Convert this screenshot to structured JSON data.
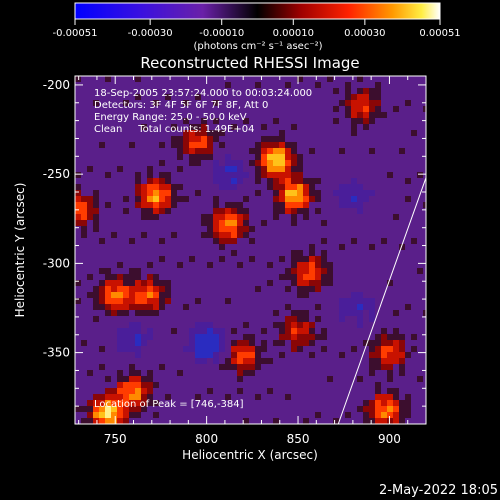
{
  "colorbar": {
    "tick_labels": [
      "-0.00051",
      "-0.00030",
      "-0.00010",
      "0.00010",
      "0.00030",
      "0.00051"
    ],
    "tick_values": [
      -0.00051,
      -0.0003,
      -0.0001,
      0.0001,
      0.0003,
      0.00051
    ],
    "range": [
      -0.00051,
      0.00051
    ],
    "unit_label": "(photons cm⁻² s⁻¹ asec⁻²)"
  },
  "chart_data": {
    "type": "heatmap",
    "title": "Reconstructed RHESSI Image",
    "xlabel": "Heliocentric X (arcsec)",
    "ylabel": "Heliocentric Y (arcsec)",
    "xlim": [
      728,
      920
    ],
    "ylim": [
      -390,
      -195
    ],
    "x_ticks": [
      750,
      800,
      850,
      900
    ],
    "y_ticks": [
      -200,
      -250,
      -300,
      -350
    ],
    "x_tick_labels": [
      "750",
      "800",
      "850",
      "900"
    ],
    "y_tick_labels": [
      "-200",
      "-250",
      "-300",
      "-350"
    ],
    "annotations": [
      "18-Sep-2005 23:57:24.000 to 00:03:24.000",
      "Detectors: 3F 4F 5F 6F 7F 8F, Att 0",
      "Energy Range: 25.0 - 50.0 keV",
      "Clean     Total counts: 1.49E+04",
      "Location of Peak = [746,-384]"
    ],
    "peak": {
      "x": 746,
      "y": -384
    },
    "limb_line": [
      {
        "x": 872,
        "y": -390
      },
      {
        "x": 920,
        "y": -252
      }
    ],
    "bright_regions": [
      {
        "x": 838,
        "y": -242,
        "level": 0.95
      },
      {
        "x": 848,
        "y": -262,
        "level": 0.85
      },
      {
        "x": 772,
        "y": -262,
        "level": 0.75
      },
      {
        "x": 812,
        "y": -278,
        "level": 0.75
      },
      {
        "x": 746,
        "y": -384,
        "level": 0.95
      },
      {
        "x": 760,
        "y": -372,
        "level": 0.7
      },
      {
        "x": 750,
        "y": -318,
        "level": 0.7
      },
      {
        "x": 768,
        "y": -318,
        "level": 0.6
      },
      {
        "x": 820,
        "y": -352,
        "level": 0.55
      },
      {
        "x": 856,
        "y": -305,
        "level": 0.6
      },
      {
        "x": 850,
        "y": -338,
        "level": 0.5
      },
      {
        "x": 898,
        "y": -382,
        "level": 0.7
      },
      {
        "x": 900,
        "y": -350,
        "level": 0.55
      },
      {
        "x": 795,
        "y": -232,
        "level": 0.55
      },
      {
        "x": 885,
        "y": -212,
        "level": 0.5
      },
      {
        "x": 730,
        "y": -270,
        "level": 0.6
      }
    ],
    "dark_regions": [
      {
        "x": 800,
        "y": -345,
        "level": -0.9
      },
      {
        "x": 812,
        "y": -250,
        "level": -0.55
      },
      {
        "x": 880,
        "y": -262,
        "level": -0.5
      },
      {
        "x": 760,
        "y": -342,
        "level": -0.5
      },
      {
        "x": 882,
        "y": -325,
        "level": -0.45
      }
    ]
  },
  "footer": {
    "date": "2-May-2022 18:05"
  }
}
